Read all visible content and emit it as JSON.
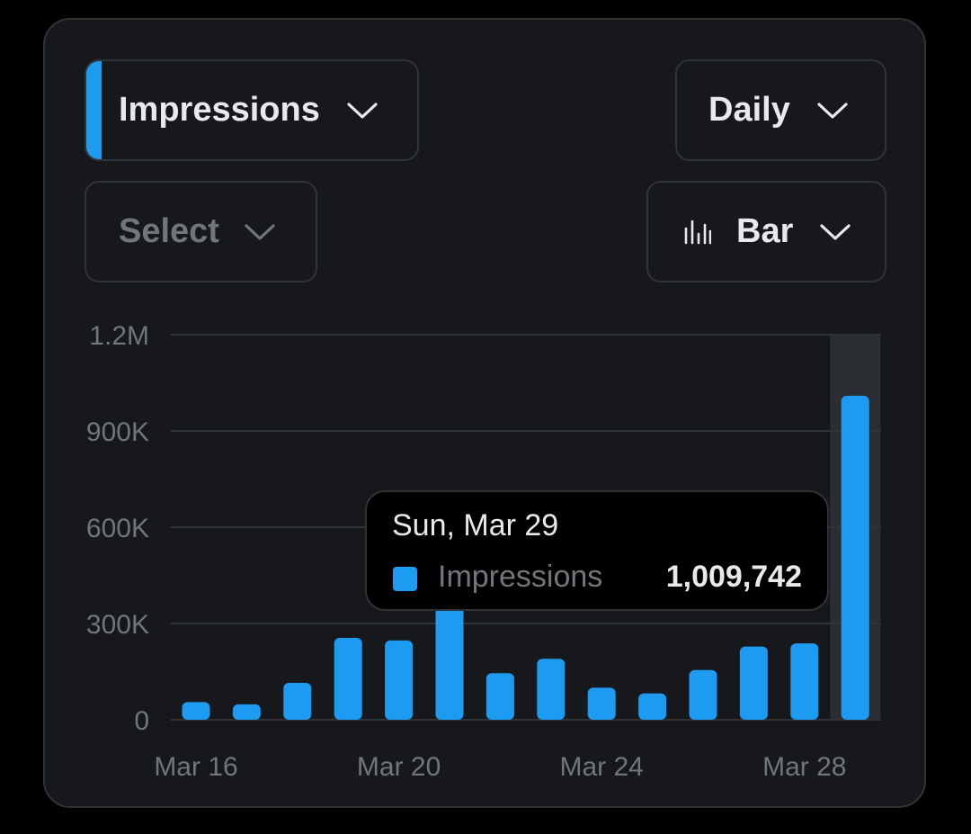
{
  "colors": {
    "accent": "#1d9bf0",
    "background": "#000000",
    "card": "#16181c",
    "border": "#2f3336",
    "grid": "#2f3336",
    "axis_text": "#71767b",
    "text": "#e7e9ea",
    "highlight_band": "#2a2d31"
  },
  "controls": {
    "metric": {
      "label": "Impressions",
      "icon": "chevron-down-icon"
    },
    "period": {
      "label": "Daily",
      "icon": "chevron-down-icon"
    },
    "compare": {
      "label": "Select",
      "icon": "chevron-down-icon"
    },
    "chart_type": {
      "label": "Bar",
      "icon": "bar-chart-icon"
    }
  },
  "tooltip": {
    "date": "Sun, Mar 29",
    "series": "Impressions",
    "value": "1,009,742"
  },
  "chart_data": {
    "type": "bar",
    "categories": [
      "Mar 16",
      "Mar 17",
      "Mar 18",
      "Mar 19",
      "Mar 20",
      "Mar 21",
      "Mar 22",
      "Mar 23",
      "Mar 24",
      "Mar 25",
      "Mar 26",
      "Mar 27",
      "Mar 28",
      "Mar 29"
    ],
    "x_tick_labels": [
      "Mar 16",
      "Mar 20",
      "Mar 24",
      "Mar 28"
    ],
    "series": [
      {
        "name": "Impressions",
        "values": [
          55000,
          48000,
          115000,
          255000,
          247000,
          390000,
          145000,
          190000,
          100000,
          82000,
          155000,
          228000,
          238000,
          1009742
        ]
      }
    ],
    "ylim": [
      0,
      1200000
    ],
    "y_ticks": [
      0,
      300000,
      600000,
      900000,
      1200000
    ],
    "y_tick_labels": [
      "0",
      "300K",
      "600K",
      "900K",
      "1.2M"
    ],
    "grid": true,
    "highlighted_category": "Mar 29"
  }
}
